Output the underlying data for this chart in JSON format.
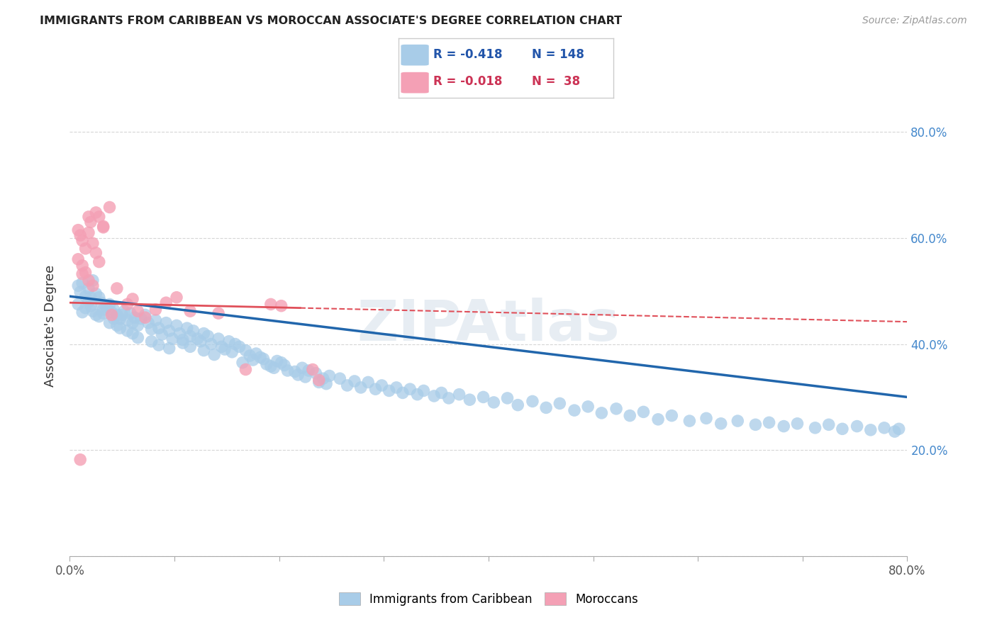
{
  "title": "IMMIGRANTS FROM CARIBBEAN VS MOROCCAN ASSOCIATE'S DEGREE CORRELATION CHART",
  "source": "Source: ZipAtlas.com",
  "ylabel": "Associate's Degree",
  "right_yticks": [
    "80.0%",
    "60.0%",
    "40.0%",
    "20.0%"
  ],
  "right_ytick_vals": [
    0.8,
    0.6,
    0.4,
    0.2
  ],
  "legend_blue_r": "-0.418",
  "legend_blue_n": "148",
  "legend_pink_r": "-0.018",
  "legend_pink_n": "38",
  "legend_label_blue": "Immigrants from Caribbean",
  "legend_label_pink": "Moroccans",
  "blue_color": "#a8cce8",
  "pink_color": "#f4a0b5",
  "blue_line_color": "#2166ac",
  "pink_line_color": "#e0505a",
  "watermark": "ZIPAtlas",
  "xlim": [
    0.0,
    0.8
  ],
  "ylim": [
    0.0,
    0.87
  ],
  "blue_scatter_x": [
    0.008,
    0.01,
    0.012,
    0.015,
    0.018,
    0.02,
    0.022,
    0.025,
    0.008,
    0.012,
    0.015,
    0.02,
    0.025,
    0.018,
    0.022,
    0.028,
    0.03,
    0.032,
    0.035,
    0.028,
    0.032,
    0.038,
    0.04,
    0.042,
    0.045,
    0.038,
    0.042,
    0.048,
    0.05,
    0.045,
    0.052,
    0.055,
    0.048,
    0.058,
    0.06,
    0.055,
    0.062,
    0.065,
    0.068,
    0.06,
    0.072,
    0.075,
    0.078,
    0.065,
    0.082,
    0.085,
    0.088,
    0.078,
    0.092,
    0.095,
    0.098,
    0.085,
    0.102,
    0.105,
    0.108,
    0.095,
    0.112,
    0.115,
    0.108,
    0.118,
    0.122,
    0.115,
    0.128,
    0.125,
    0.132,
    0.135,
    0.128,
    0.142,
    0.145,
    0.138,
    0.152,
    0.148,
    0.158,
    0.155,
    0.162,
    0.168,
    0.172,
    0.165,
    0.178,
    0.175,
    0.182,
    0.188,
    0.185,
    0.192,
    0.198,
    0.195,
    0.202,
    0.208,
    0.205,
    0.215,
    0.222,
    0.218,
    0.228,
    0.225,
    0.235,
    0.242,
    0.238,
    0.248,
    0.245,
    0.258,
    0.265,
    0.272,
    0.278,
    0.285,
    0.292,
    0.298,
    0.305,
    0.312,
    0.318,
    0.325,
    0.332,
    0.338,
    0.348,
    0.355,
    0.362,
    0.372,
    0.382,
    0.395,
    0.405,
    0.418,
    0.428,
    0.442,
    0.455,
    0.468,
    0.482,
    0.495,
    0.508,
    0.522,
    0.535,
    0.548,
    0.562,
    0.575,
    0.592,
    0.608,
    0.622,
    0.638,
    0.655,
    0.668,
    0.682,
    0.695,
    0.712,
    0.725,
    0.738,
    0.752,
    0.765,
    0.778,
    0.788,
    0.792
  ],
  "blue_scatter_y": [
    0.51,
    0.498,
    0.515,
    0.49,
    0.505,
    0.488,
    0.52,
    0.495,
    0.475,
    0.46,
    0.468,
    0.472,
    0.455,
    0.48,
    0.462,
    0.488,
    0.478,
    0.465,
    0.47,
    0.452,
    0.458,
    0.475,
    0.46,
    0.448,
    0.455,
    0.44,
    0.465,
    0.448,
    0.455,
    0.435,
    0.462,
    0.445,
    0.43,
    0.458,
    0.44,
    0.425,
    0.45,
    0.435,
    0.448,
    0.42,
    0.455,
    0.44,
    0.428,
    0.412,
    0.445,
    0.43,
    0.418,
    0.405,
    0.44,
    0.425,
    0.41,
    0.398,
    0.435,
    0.42,
    0.408,
    0.392,
    0.43,
    0.415,
    0.402,
    0.425,
    0.41,
    0.395,
    0.42,
    0.405,
    0.415,
    0.4,
    0.388,
    0.41,
    0.395,
    0.38,
    0.405,
    0.39,
    0.4,
    0.385,
    0.395,
    0.388,
    0.378,
    0.365,
    0.382,
    0.37,
    0.375,
    0.362,
    0.372,
    0.358,
    0.368,
    0.355,
    0.365,
    0.35,
    0.36,
    0.348,
    0.355,
    0.342,
    0.35,
    0.338,
    0.345,
    0.335,
    0.328,
    0.34,
    0.325,
    0.335,
    0.322,
    0.33,
    0.318,
    0.328,
    0.315,
    0.322,
    0.312,
    0.318,
    0.308,
    0.315,
    0.305,
    0.312,
    0.302,
    0.308,
    0.298,
    0.305,
    0.295,
    0.3,
    0.29,
    0.298,
    0.285,
    0.292,
    0.28,
    0.288,
    0.275,
    0.282,
    0.27,
    0.278,
    0.265,
    0.272,
    0.258,
    0.265,
    0.255,
    0.26,
    0.25,
    0.255,
    0.248,
    0.252,
    0.245,
    0.25,
    0.242,
    0.248,
    0.24,
    0.245,
    0.238,
    0.242,
    0.235,
    0.24
  ],
  "pink_scatter_x": [
    0.008,
    0.01,
    0.012,
    0.015,
    0.008,
    0.012,
    0.015,
    0.018,
    0.02,
    0.018,
    0.022,
    0.025,
    0.028,
    0.022,
    0.028,
    0.032,
    0.038,
    0.04,
    0.045,
    0.055,
    0.06,
    0.065,
    0.072,
    0.082,
    0.092,
    0.102,
    0.115,
    0.142,
    0.168,
    0.192,
    0.202,
    0.232,
    0.238,
    0.01,
    0.012,
    0.018,
    0.025,
    0.032
  ],
  "pink_scatter_y": [
    0.615,
    0.605,
    0.595,
    0.58,
    0.56,
    0.548,
    0.535,
    0.52,
    0.63,
    0.61,
    0.59,
    0.572,
    0.555,
    0.51,
    0.64,
    0.622,
    0.658,
    0.455,
    0.505,
    0.475,
    0.485,
    0.462,
    0.45,
    0.465,
    0.478,
    0.488,
    0.462,
    0.458,
    0.352,
    0.475,
    0.472,
    0.352,
    0.332,
    0.182,
    0.532,
    0.64,
    0.648,
    0.62
  ],
  "blue_trend_x": [
    0.0,
    0.8
  ],
  "blue_trend_y": [
    0.49,
    0.3
  ],
  "pink_trend_x": [
    0.0,
    0.8
  ],
  "pink_trend_y": [
    0.478,
    0.442
  ]
}
